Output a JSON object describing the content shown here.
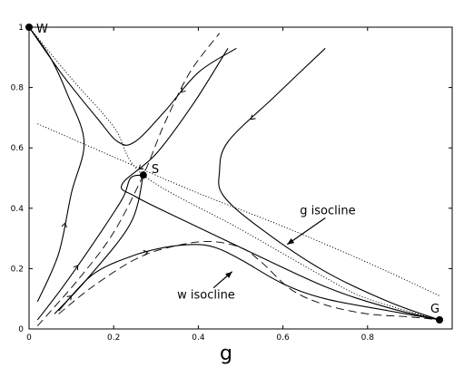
{
  "chart_data": {
    "type": "line",
    "title": "",
    "xlabel": "g",
    "ylabel": "",
    "xlim": [
      0,
      1
    ],
    "ylim": [
      0,
      1
    ],
    "grid": false,
    "x_ticks": [
      0,
      0.2,
      0.4,
      0.6,
      0.8
    ],
    "y_ticks": [
      0,
      0.2,
      0.4,
      0.6,
      0.8,
      1
    ],
    "x_tick_labels": [
      "0",
      "0.2",
      "0.4",
      "0.6",
      "0.8"
    ],
    "y_tick_labels": [
      "0",
      "0.2",
      "0.4",
      "0.6",
      "0.8",
      "1"
    ],
    "fixed_points": [
      {
        "label": "W",
        "g": 0.0,
        "w": 1.0
      },
      {
        "label": "S",
        "g": 0.27,
        "w": 0.51
      },
      {
        "label": "G",
        "g": 0.97,
        "w": 0.03
      }
    ],
    "isoclines": [
      {
        "name": "g isocline",
        "style": "dotted",
        "points": [
          [
            0.02,
            0.68
          ],
          [
            0.2,
            0.57
          ],
          [
            0.4,
            0.45
          ],
          [
            0.6,
            0.34
          ],
          [
            0.8,
            0.22
          ],
          [
            0.97,
            0.11
          ]
        ]
      },
      {
        "name": "w isocline",
        "style": "dashed",
        "points": [
          [
            0.07,
            0.05
          ],
          [
            0.15,
            0.14
          ],
          [
            0.25,
            0.23
          ],
          [
            0.33,
            0.27
          ],
          [
            0.42,
            0.29
          ],
          [
            0.5,
            0.27
          ],
          [
            0.55,
            0.22
          ],
          [
            0.62,
            0.13
          ],
          [
            0.7,
            0.08
          ],
          [
            0.8,
            0.05
          ],
          [
            0.9,
            0.04
          ],
          [
            0.97,
            0.03
          ]
        ]
      }
    ],
    "separatrices": [
      {
        "style": "dotted",
        "points": [
          [
            0.0,
            1.0
          ],
          [
            0.1,
            0.83
          ],
          [
            0.2,
            0.67
          ],
          [
            0.27,
            0.51
          ],
          [
            0.5,
            0.33
          ],
          [
            0.7,
            0.17
          ],
          [
            0.8,
            0.1
          ],
          [
            0.97,
            0.03
          ]
        ]
      },
      {
        "style": "dashed",
        "points": [
          [
            0.02,
            0.01
          ],
          [
            0.12,
            0.17
          ],
          [
            0.2,
            0.32
          ],
          [
            0.27,
            0.51
          ],
          [
            0.32,
            0.68
          ],
          [
            0.38,
            0.85
          ],
          [
            0.45,
            0.98
          ]
        ]
      }
    ],
    "trajectories": [
      {
        "arrow": "down",
        "points": [
          [
            0.47,
            0.93
          ],
          [
            0.39,
            0.75
          ],
          [
            0.3,
            0.58
          ],
          [
            0.22,
            0.48
          ],
          [
            0.25,
            0.44
          ],
          [
            0.35,
            0.37
          ],
          [
            0.5,
            0.27
          ],
          [
            0.7,
            0.14
          ],
          [
            0.85,
            0.07
          ],
          [
            0.97,
            0.03
          ]
        ]
      },
      {
        "arrow": "down",
        "points": [
          [
            0.7,
            0.93
          ],
          [
            0.58,
            0.77
          ],
          [
            0.47,
            0.62
          ],
          [
            0.45,
            0.52
          ],
          [
            0.46,
            0.44
          ],
          [
            0.55,
            0.33
          ],
          [
            0.7,
            0.19
          ],
          [
            0.85,
            0.09
          ],
          [
            0.97,
            0.03
          ]
        ]
      },
      {
        "arrow": "down",
        "points": [
          [
            0.49,
            0.93
          ],
          [
            0.4,
            0.85
          ],
          [
            0.32,
            0.72
          ],
          [
            0.25,
            0.62
          ],
          [
            0.21,
            0.62
          ],
          [
            0.16,
            0.7
          ],
          [
            0.08,
            0.84
          ],
          [
            0.0,
            1.0
          ]
        ]
      },
      {
        "arrow": "up",
        "points": [
          [
            0.02,
            0.09
          ],
          [
            0.07,
            0.25
          ],
          [
            0.1,
            0.45
          ],
          [
            0.13,
            0.62
          ],
          [
            0.09,
            0.78
          ],
          [
            0.05,
            0.9
          ],
          [
            0.0,
            1.0
          ]
        ]
      },
      {
        "arrow": "up",
        "points": [
          [
            0.02,
            0.03
          ],
          [
            0.08,
            0.14
          ],
          [
            0.15,
            0.28
          ],
          [
            0.22,
            0.43
          ],
          [
            0.24,
            0.5
          ],
          [
            0.27,
            0.51
          ]
        ]
      },
      {
        "arrow": "up",
        "points": [
          [
            0.06,
            0.05
          ],
          [
            0.14,
            0.17
          ],
          [
            0.24,
            0.35
          ],
          [
            0.27,
            0.51
          ]
        ]
      },
      {
        "arrow": "right",
        "points": [
          [
            0.07,
            0.06
          ],
          [
            0.15,
            0.18
          ],
          [
            0.24,
            0.24
          ],
          [
            0.32,
            0.27
          ],
          [
            0.39,
            0.28
          ],
          [
            0.44,
            0.27
          ],
          [
            0.5,
            0.23
          ],
          [
            0.6,
            0.15
          ],
          [
            0.7,
            0.1
          ],
          [
            0.85,
            0.06
          ],
          [
            0.97,
            0.03
          ]
        ]
      }
    ],
    "annotations": [
      {
        "text": "g  isocline",
        "g": 0.64,
        "w": 0.38
      },
      {
        "text": "w  isocline",
        "g": 0.35,
        "w": 0.1
      }
    ]
  }
}
